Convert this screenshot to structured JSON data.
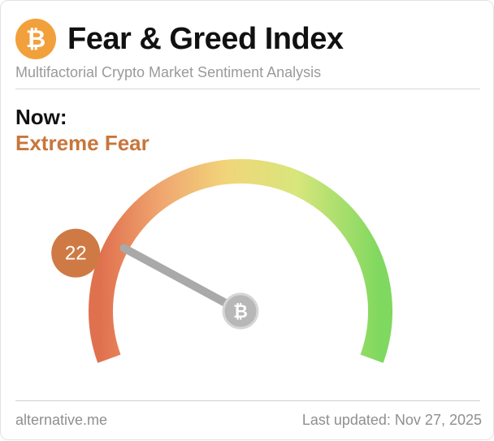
{
  "header": {
    "logo_icon": "bitcoin-icon",
    "title": "Fear & Greed Index",
    "subtitle": "Multifactorial Crypto Market Sentiment Analysis"
  },
  "status": {
    "label": "Now:",
    "classification": "Extreme Fear",
    "classification_color": "#c8763c"
  },
  "gauge": {
    "value": 22,
    "min": 0,
    "max": 100,
    "badge_color": "#cf7a45",
    "hub_icon": "bitcoin-icon"
  },
  "footer": {
    "source": "alternative.me",
    "updated": "Last updated: Nov 27, 2025"
  }
}
